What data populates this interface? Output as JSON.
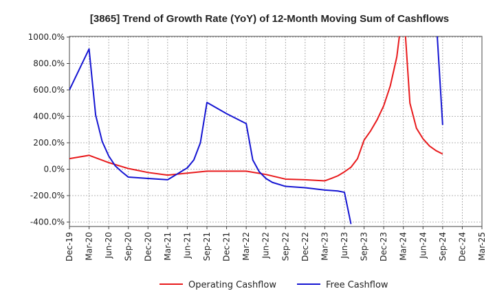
{
  "chart_data": {
    "type": "line",
    "title": "[3865]  Trend of Growth Rate (YoY) of 12-Month Moving Sum of Cashflows",
    "x_tick_labels": [
      "Dec-19",
      "Mar-20",
      "Jun-20",
      "Sep-20",
      "Dec-20",
      "Mar-21",
      "Jun-21",
      "Sep-21",
      "Dec-21",
      "Mar-22",
      "Jun-22",
      "Sep-22",
      "Dec-22",
      "Mar-23",
      "Jun-23",
      "Sep-23",
      "Dec-23",
      "Mar-24",
      "Jun-24",
      "Sep-24",
      "Dec-24",
      "Mar-25"
    ],
    "y_tick_values": [
      1000,
      800,
      600,
      400,
      200,
      0,
      -200,
      -400
    ],
    "y_tick_labels": [
      "1000.0%",
      "800.0%",
      "600.0%",
      "400.0%",
      "200.0%",
      "0.0%",
      "-200.0%",
      "-400.0%"
    ],
    "ylim": [
      -430,
      1000
    ],
    "grid": true,
    "legend_position": "bottom",
    "series": [
      {
        "name": "Operating Cashflow",
        "color": "#e8191b",
        "points": [
          [
            0,
            80
          ],
          [
            3,
            105
          ],
          [
            6,
            50
          ],
          [
            9,
            5
          ],
          [
            12,
            -25
          ],
          [
            15,
            -45
          ],
          [
            18,
            -30
          ],
          [
            21,
            -15
          ],
          [
            24,
            -15
          ],
          [
            27,
            -15
          ],
          [
            30,
            -40
          ],
          [
            33,
            -75
          ],
          [
            36,
            -80
          ],
          [
            39,
            -88
          ],
          [
            40,
            -70
          ],
          [
            41,
            -50
          ],
          [
            42,
            -20
          ],
          [
            43,
            15
          ],
          [
            44,
            80
          ],
          [
            45,
            220
          ],
          [
            46,
            290
          ],
          [
            47,
            375
          ],
          [
            48,
            480
          ],
          [
            49,
            630
          ],
          [
            50,
            850
          ],
          [
            51,
            1250
          ],
          [
            52,
            500
          ],
          [
            53,
            310
          ],
          [
            54,
            230
          ],
          [
            55,
            175
          ],
          [
            56,
            140
          ],
          [
            57,
            115
          ]
        ]
      },
      {
        "name": "Free Cashflow",
        "color": "#1414d2",
        "points": [
          [
            0,
            600
          ],
          [
            3,
            910
          ],
          [
            4,
            410
          ],
          [
            5,
            210
          ],
          [
            6,
            100
          ],
          [
            7,
            25
          ],
          [
            8,
            -20
          ],
          [
            9,
            -60
          ],
          [
            12,
            -70
          ],
          [
            15,
            -80
          ],
          [
            16,
            -50
          ],
          [
            17,
            -20
          ],
          [
            18,
            10
          ],
          [
            19,
            70
          ],
          [
            20,
            200
          ],
          [
            21,
            505
          ],
          [
            24,
            420
          ],
          [
            27,
            345
          ],
          [
            28,
            70
          ],
          [
            29,
            -20
          ],
          [
            30,
            -70
          ],
          [
            31,
            -100
          ],
          [
            33,
            -130
          ],
          [
            36,
            -140
          ],
          [
            39,
            -158
          ],
          [
            41,
            -165
          ],
          [
            42,
            -175
          ],
          [
            43,
            -415
          ]
        ],
        "points_late": [
          [
            56,
            1150
          ],
          [
            57,
            335
          ]
        ]
      }
    ]
  }
}
